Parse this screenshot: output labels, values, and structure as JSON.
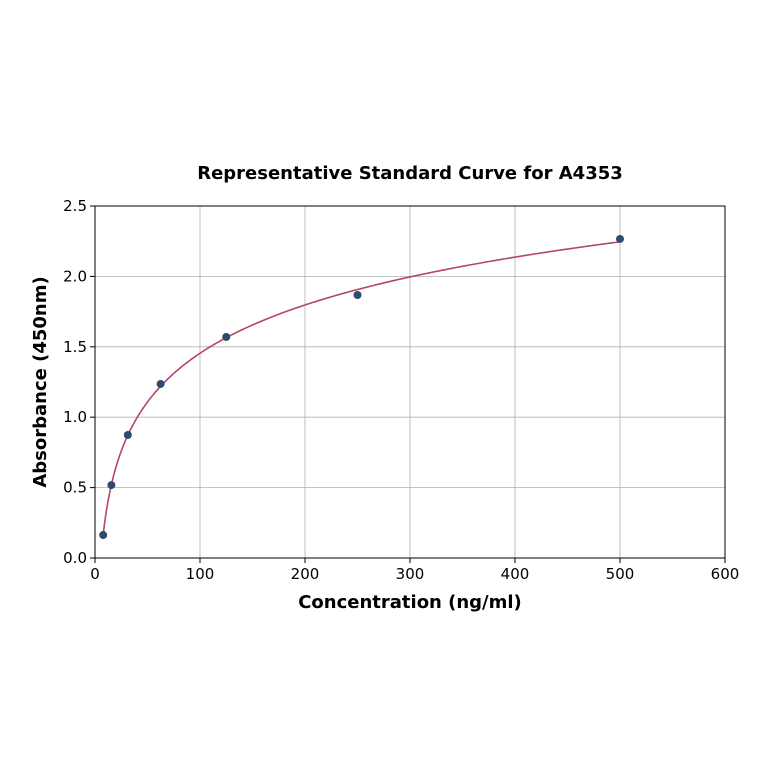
{
  "chart_data": {
    "type": "scatter",
    "title": "Representative Standard Curve for A4353",
    "xlabel": "Concentration (ng/ml)",
    "ylabel": "Absorbance (450nm)",
    "xlim": [
      0,
      600
    ],
    "ylim": [
      0,
      2.5
    ],
    "xticks": [
      "0",
      "100",
      "200",
      "300",
      "400",
      "500",
      "600"
    ],
    "yticks": [
      "0.0",
      "0.5",
      "1.0",
      "1.5",
      "2.0",
      "2.5"
    ],
    "grid": true,
    "legend": null,
    "series": [
      {
        "name": "Standard points",
        "x": [
          7.8,
          15.6,
          31.25,
          62.5,
          125,
          250,
          500
        ],
        "y": [
          0.163,
          0.518,
          0.874,
          1.236,
          1.57,
          1.868,
          2.266
        ],
        "color": "#2e4a6e"
      },
      {
        "name": "Fitted curve",
        "type": "line",
        "color": "#b5456a"
      }
    ]
  }
}
